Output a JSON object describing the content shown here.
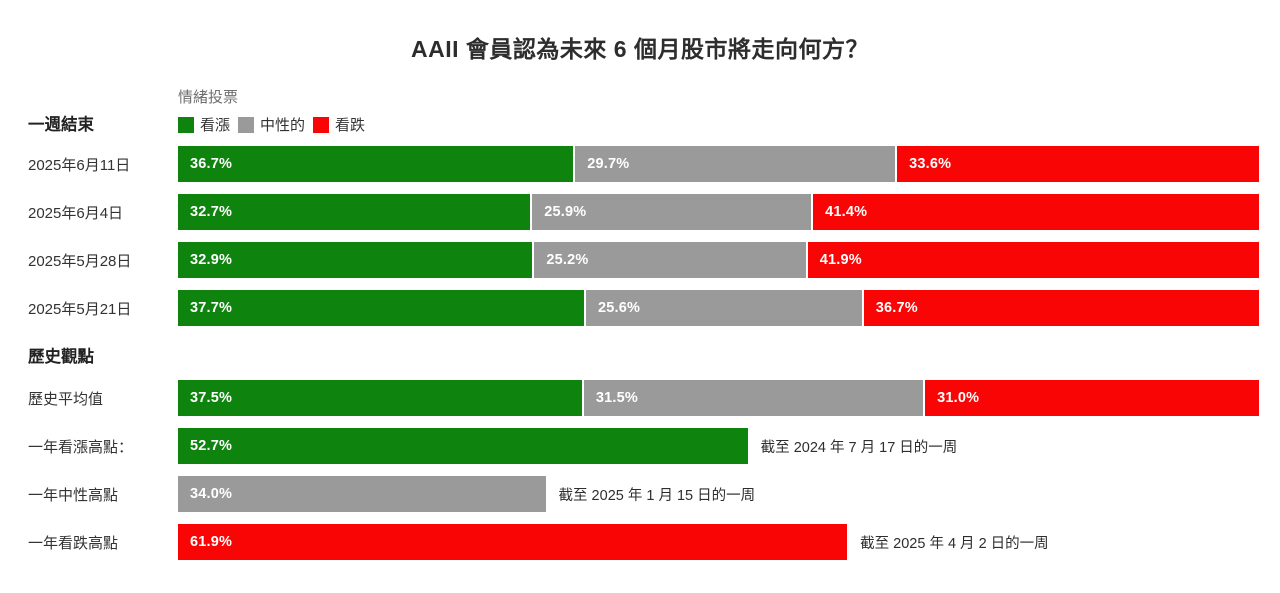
{
  "title": "AAII 會員認為未來 6 個月股市將走向何方？",
  "legend": {
    "title": "情緒投票",
    "items": [
      {
        "label": "看漲",
        "color": "#0e830e"
      },
      {
        "label": "中性的",
        "color": "#9a9a9a"
      },
      {
        "label": "看跌",
        "color": "#f90505"
      }
    ]
  },
  "chart_data": {
    "type": "bar",
    "orientation": "horizontal",
    "stacked": true,
    "unit": "%",
    "xlim": [
      0,
      100
    ],
    "series_names": [
      "看漲",
      "中性的",
      "看跌"
    ],
    "weekly": {
      "header": "一週結束",
      "rows": [
        {
          "label": "2025年6月11日",
          "values": [
            36.7,
            29.7,
            33.6
          ]
        },
        {
          "label": "2025年6月4日",
          "values": [
            32.7,
            25.9,
            41.4
          ]
        },
        {
          "label": "2025年5月28日",
          "values": [
            32.9,
            25.2,
            41.9
          ]
        },
        {
          "label": "2025年5月21日",
          "values": [
            37.7,
            25.6,
            36.7
          ]
        }
      ]
    },
    "historical": {
      "header": "歷史觀點",
      "average": {
        "label": "歷史平均值",
        "values": [
          37.5,
          31.5,
          31.0
        ]
      },
      "extremes": [
        {
          "label": "一年看漲高點：",
          "series": "看漲",
          "value": 52.7,
          "annotation": "截至 2024 年 7 月 17 日的一周"
        },
        {
          "label": "一年中性高點",
          "series": "中性的",
          "value": 34.0,
          "annotation": "截至 2025 年 1 月 15 日的一周"
        },
        {
          "label": "一年看跌高點",
          "series": "看跌",
          "value": 61.9,
          "annotation": "截至 2025 年 4 月 2 日的一周"
        }
      ]
    }
  }
}
